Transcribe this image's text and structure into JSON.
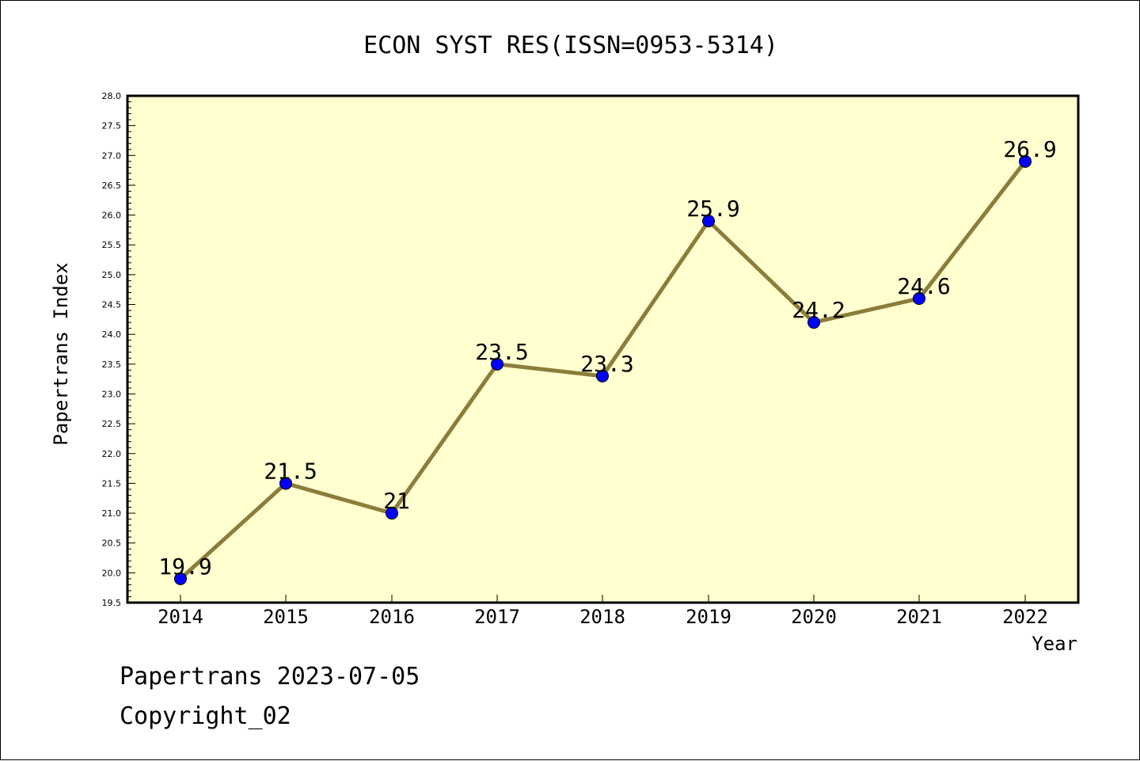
{
  "chart_data": {
    "type": "line",
    "title": "ECON SYST RES(ISSN=0953-5314)",
    "xlabel": "Year",
    "ylabel": "Papertrans Index",
    "categories": [
      "2014",
      "2015",
      "2016",
      "2017",
      "2018",
      "2019",
      "2020",
      "2021",
      "2022"
    ],
    "series": [
      {
        "values": [
          19.9,
          21.5,
          21,
          23.5,
          23.3,
          25.9,
          24.2,
          24.6,
          26.9
        ],
        "data_labels": [
          "19.9",
          "21.5",
          "21",
          "23.5",
          "23.3",
          "25.9",
          "24.2",
          "24.6",
          "26.9"
        ]
      }
    ],
    "ylim": [
      19.5,
      28.0
    ],
    "yticks": [
      "19.5",
      "20.0",
      "20.5",
      "21.0",
      "21.5",
      "22.0",
      "22.5",
      "23.0",
      "23.5",
      "24.0",
      "24.5",
      "25.0",
      "25.5",
      "26.0",
      "26.5",
      "27.0",
      "27.5",
      "28.0"
    ],
    "grid": false,
    "colors": {
      "plot_background": "#ffffd0",
      "line": "#8b7d3a",
      "marker": "#0000ff"
    }
  },
  "footer": {
    "line1": "Papertrans 2023-07-05",
    "line2": "Copyright_02"
  }
}
